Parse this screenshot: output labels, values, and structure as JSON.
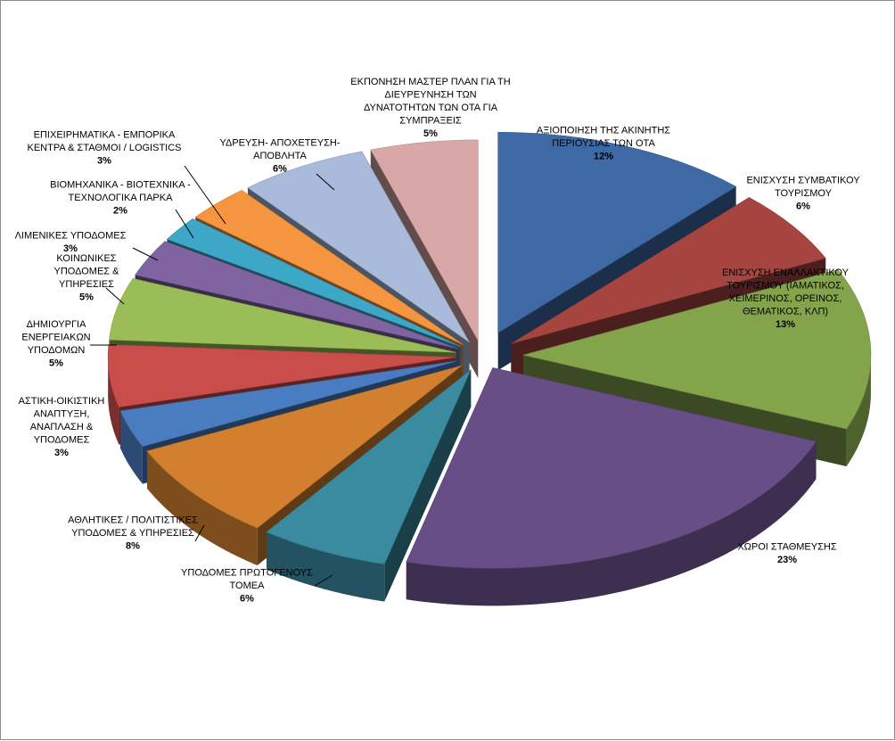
{
  "chart_data": {
    "type": "pie",
    "style": "3d-exploded",
    "legend": "none",
    "title": "",
    "slices": [
      {
        "lines": [
          "ΑΞΙΟΠΟΙΗΣΗ ΤΗΣ ΑΚΙΝΗΤΗΣ",
          "ΠΕΡΙΟΥΣΙΑΣ ΤΩΝ ΟΤΑ"
        ],
        "value": 12,
        "pct": "12%",
        "color": "#3F69A4"
      },
      {
        "lines": [
          "ΕΝΙΣΧΥΣΗ ΣΥΜΒΑΤΙΚΟΥ",
          "ΤΟΥΡΙΣΜΟΥ"
        ],
        "value": 6,
        "pct": "6%",
        "color": "#A64440"
      },
      {
        "lines": [
          "ΕΝΙΣΧΥΣΗ ΕΝΑΛΛΑΚΤΙΚΟΥ",
          "ΤΟΥΡΙΣΜΟΥ (ΙΑΜΑΤΙΚΟΣ,",
          "ΧΕΙΜΕΡΙΝΟΣ, ΟΡΕΙΝΟΣ,",
          "ΘΕΜΑΤΙΚΟΣ, ΚΛΠ)"
        ],
        "value": 13,
        "pct": "13%",
        "color": "#84A44C"
      },
      {
        "lines": [
          "ΧΩΡΟΙ ΣΤΑΘΜΕΥΣΗΣ"
        ],
        "value": 23,
        "pct": "23%",
        "color": "#684E86"
      },
      {
        "lines": [
          "ΥΠΟΔΟΜΕΣ ΠΡΩΤΟΓΕΝΟΥΣ",
          "ΤΟΜΕΑ"
        ],
        "value": 6,
        "pct": "6%",
        "color": "#3A8BA0"
      },
      {
        "lines": [
          "ΑΘΛΗΤΙΚΕΣ / ΠΟΛΙΤΙΣΤΙΚΕΣ",
          "ΥΠΟΔΟΜΕΣ & ΥΠΗΡΕΣΙΕΣ"
        ],
        "value": 8,
        "pct": "8%",
        "color": "#D2802F"
      },
      {
        "lines": [
          "ΑΣΤΙΚΗ-ΟΙΚΙΣΤΙΚΗ",
          "ΑΝΑΠΤΥΞΗ,",
          "ΑΝΑΠΛΑΣΗ &",
          "ΥΠΟΔΟΜΕΣ"
        ],
        "value": 3,
        "pct": "3%",
        "color": "#4A7CC2"
      },
      {
        "lines": [
          "ΔΗΜΙΟΥΡΓΙΑ",
          "ΕΝΕΡΓΕΙΑΚΩΝ",
          "ΥΠΟΔΟΜΩΝ"
        ],
        "value": 5,
        "pct": "5%",
        "color": "#C94E4B"
      },
      {
        "lines": [
          "ΚΟΙΝΩΝΙΚΕΣ",
          "ΥΠΟΔΟΜΕΣ &",
          "ΥΠΗΡΕΣΙΕΣ"
        ],
        "value": 5,
        "pct": "5%",
        "color": "#9BBD58"
      },
      {
        "lines": [
          "ΛΙΜΕΝΙΚΕΣ ΥΠΟΔΟΜΕΣ"
        ],
        "value": 3,
        "pct": "3%",
        "color": "#8064A2"
      },
      {
        "lines": [
          "ΒΙΟΜΗΧΑΝΙΚΑ - ΒΙΟΤΕΧΝΙΚΑ -",
          "ΤΕΧΝΟΛΟΓΙΚΑ ΠΑΡΚΑ"
        ],
        "value": 2,
        "pct": "2%",
        "color": "#3CA7C6"
      },
      {
        "lines": [
          "ΕΠΙΧΕΙΡΗΜΑΤΙΚΑ - ΕΜΠΟΡΙΚΑ",
          "ΚΕΝΤΡΑ & ΣΤΑΘΜΟΙ / LOGISTICS"
        ],
        "value": 3,
        "pct": "3%",
        "color": "#F5953F"
      },
      {
        "lines": [
          "ΥΔΡΕΥΣΗ- ΑΠΟΧΕΤΕΥΣΗ-",
          "ΑΠΟΒΛΗΤΑ"
        ],
        "value": 6,
        "pct": "6%",
        "color": "#A9BADA"
      },
      {
        "lines": [
          "ΕΚΠΟΝΗΣΗ ΜΑΣΤΕΡ ΠΛΑΝ ΓΙΑ ΤΗ",
          "ΔΙΕΥΡΕΥΝΗΣΗ ΤΩΝ",
          "ΔΥΝΑΤΟΤΗΤΩΝ ΤΩΝ ΟΤΑ ΓΙΑ",
          "ΣΥΜΠΡΑΞΕΙΣ"
        ],
        "value": 5,
        "pct": "5%",
        "color": "#D9A7A7"
      }
    ]
  }
}
